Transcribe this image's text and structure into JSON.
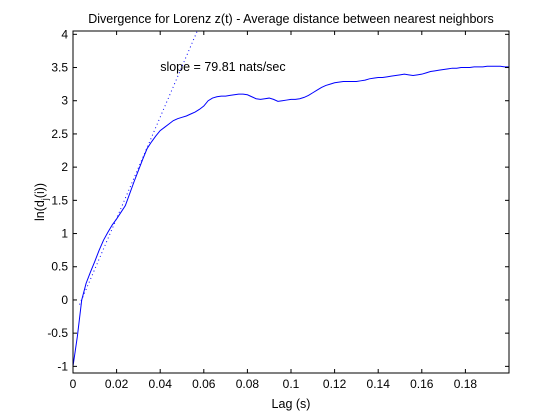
{
  "chart_data": {
    "type": "line",
    "title": "Divergence for Lorenz z(t) - Average distance between nearest neighbors",
    "xlabel": "Lag (s)",
    "ylabel_main": "ln(d",
    "ylabel_sub": "j",
    "ylabel_tail": "(i))",
    "xlim": [
      0,
      0.2
    ],
    "ylim": [
      -1.1,
      4.05
    ],
    "x_ticks": [
      0,
      0.02,
      0.04,
      0.06,
      0.08,
      0.1,
      0.12,
      0.14,
      0.16,
      0.18
    ],
    "x_tick_labels": [
      "0",
      "0.02",
      "0.04",
      "0.06",
      "0.08",
      "0.1",
      "0.12",
      "0.14",
      "0.16",
      "0.18"
    ],
    "y_ticks": [
      -1,
      -0.5,
      0,
      0.5,
      1,
      1.5,
      2,
      2.5,
      3,
      3.5,
      4
    ],
    "y_tick_labels": [
      "-1",
      "-0.5",
      "0",
      "0.5",
      "1",
      "1.5",
      "2",
      "2.5",
      "3",
      "3.5",
      "4"
    ],
    "grid": false,
    "annotation": {
      "text": "slope = 79.81 nats/sec",
      "x": 0.04,
      "y": 3.45
    },
    "series": [
      {
        "style": "solid",
        "color": "#0000ff",
        "x": [
          0,
          0.002,
          0.004,
          0.006,
          0.008,
          0.01,
          0.012,
          0.014,
          0.016,
          0.018,
          0.02,
          0.022,
          0.024,
          0.026,
          0.028,
          0.03,
          0.032,
          0.034,
          0.036,
          0.038,
          0.04,
          0.042,
          0.044,
          0.046,
          0.048,
          0.05,
          0.052,
          0.054,
          0.056,
          0.058,
          0.06,
          0.062,
          0.064,
          0.066,
          0.068,
          0.07,
          0.072,
          0.074,
          0.076,
          0.078,
          0.08,
          0.082,
          0.084,
          0.086,
          0.088,
          0.09,
          0.092,
          0.094,
          0.096,
          0.098,
          0.1,
          0.102,
          0.104,
          0.106,
          0.108,
          0.11,
          0.112,
          0.114,
          0.116,
          0.118,
          0.12,
          0.122,
          0.124,
          0.126,
          0.128,
          0.13,
          0.132,
          0.134,
          0.136,
          0.138,
          0.14,
          0.142,
          0.144,
          0.146,
          0.148,
          0.15,
          0.152,
          0.154,
          0.156,
          0.158,
          0.16,
          0.162,
          0.164,
          0.166,
          0.168,
          0.17,
          0.172,
          0.174,
          0.176,
          0.178,
          0.18,
          0.182,
          0.184,
          0.186,
          0.188,
          0.19,
          0.192,
          0.194,
          0.196,
          0.198,
          0.2
        ],
        "y": [
          -1.0,
          -0.55,
          0.0,
          0.25,
          0.42,
          0.58,
          0.75,
          0.9,
          1.02,
          1.13,
          1.22,
          1.32,
          1.42,
          1.6,
          1.78,
          1.95,
          2.12,
          2.28,
          2.38,
          2.47,
          2.55,
          2.6,
          2.65,
          2.7,
          2.73,
          2.75,
          2.77,
          2.8,
          2.83,
          2.87,
          2.92,
          3.0,
          3.04,
          3.06,
          3.07,
          3.07,
          3.08,
          3.09,
          3.1,
          3.1,
          3.09,
          3.06,
          3.03,
          3.02,
          3.03,
          3.04,
          3.02,
          2.99,
          3.0,
          3.01,
          3.02,
          3.02,
          3.03,
          3.05,
          3.08,
          3.12,
          3.16,
          3.2,
          3.23,
          3.25,
          3.27,
          3.28,
          3.29,
          3.29,
          3.29,
          3.29,
          3.3,
          3.31,
          3.33,
          3.34,
          3.35,
          3.35,
          3.36,
          3.37,
          3.38,
          3.39,
          3.4,
          3.39,
          3.38,
          3.39,
          3.4,
          3.42,
          3.44,
          3.45,
          3.46,
          3.47,
          3.48,
          3.49,
          3.49,
          3.5,
          3.5,
          3.5,
          3.51,
          3.51,
          3.51,
          3.52,
          3.52,
          3.52,
          3.52,
          3.51,
          3.51
        ]
      },
      {
        "style": "dotted",
        "color": "#0000ff",
        "x": [
          0.003,
          0.057
        ],
        "y": [
          -0.07,
          4.05
        ]
      }
    ]
  }
}
